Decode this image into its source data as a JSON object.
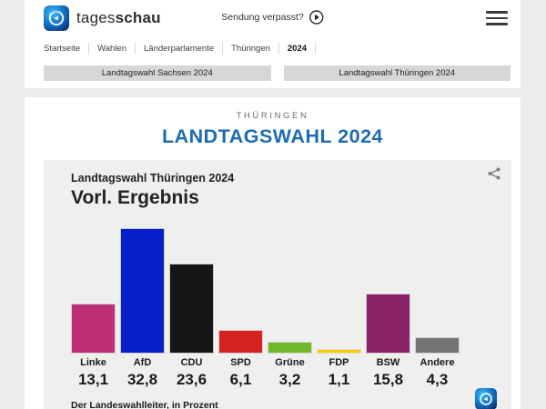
{
  "header": {
    "brand_regular": "tages",
    "brand_bold": "schau",
    "sendung_verpasst_label": "Sendung verpasst?"
  },
  "breadcrumb": {
    "items": [
      "Startseite",
      "Wahlen",
      "Länderparlamente",
      "Thüringen",
      "2024"
    ]
  },
  "election_buttons": [
    {
      "label": "Landtagswahl Sachsen 2024"
    },
    {
      "label": "Landtagswahl Thüringen 2024"
    }
  ],
  "main": {
    "eyebrow": "THÜRINGEN",
    "title": "LANDTAGSWAHL 2024",
    "title_color": "#1c6cb4"
  },
  "chart_data": {
    "type": "bar",
    "title": "Landtagswahl Thüringen 2024",
    "subtitle": "Vorl. Ergebnis",
    "source": "Der Landeswahlleiter, in Prozent",
    "unit": "Prozent",
    "categories": [
      "Linke",
      "AfD",
      "CDU",
      "SPD",
      "Grüne",
      "FDP",
      "BSW",
      "Andere"
    ],
    "values": [
      13.1,
      32.8,
      23.6,
      6.1,
      3.2,
      1.1,
      15.8,
      4.3
    ],
    "value_labels": [
      "13,1",
      "32,8",
      "23,6",
      "6,1",
      "3,2",
      "1,1",
      "15,8",
      "4,3"
    ],
    "colors": [
      "#be3075",
      "#0520c8",
      "#151515",
      "#d52221",
      "#72b62a",
      "#f8cd00",
      "#8a2365",
      "#747474"
    ],
    "ylim": [
      0,
      35
    ],
    "grid": false,
    "legend": "none"
  }
}
